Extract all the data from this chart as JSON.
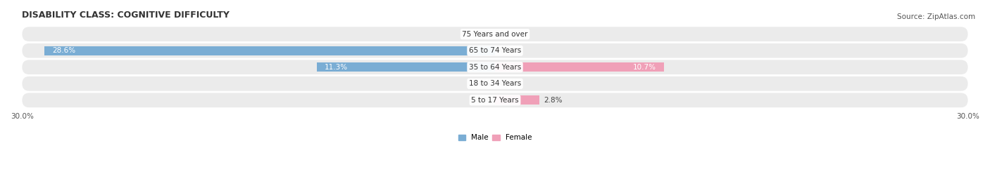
{
  "title": "DISABILITY CLASS: COGNITIVE DIFFICULTY",
  "source": "Source: ZipAtlas.com",
  "categories": [
    "5 to 17 Years",
    "18 to 34 Years",
    "35 to 64 Years",
    "65 to 74 Years",
    "75 Years and over"
  ],
  "male_values": [
    0.0,
    0.0,
    11.3,
    28.6,
    0.0
  ],
  "female_values": [
    2.8,
    0.0,
    10.7,
    0.0,
    0.0
  ],
  "male_color": "#7aadd4",
  "female_color": "#f0a0b8",
  "row_bg_color": "#ebebeb",
  "max_val": 30.0,
  "bar_height": 0.55,
  "title_fontsize": 9,
  "label_fontsize": 7.5,
  "tick_fontsize": 7.5,
  "source_fontsize": 7.5,
  "figsize": [
    14.06,
    2.68
  ],
  "dpi": 100
}
